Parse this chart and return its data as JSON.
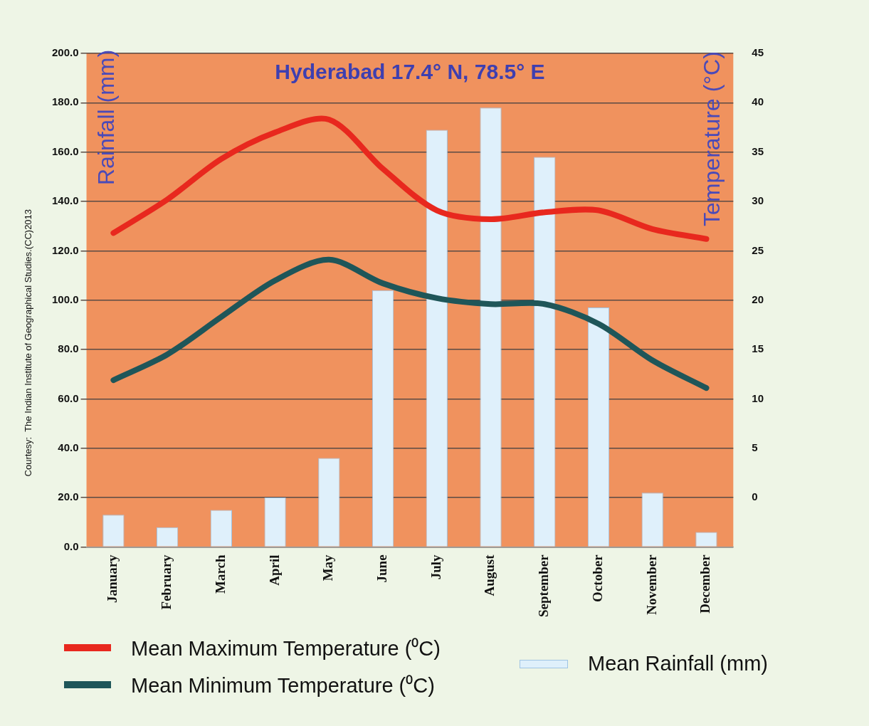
{
  "chart_data": {
    "type": "bar",
    "title": "Hyderabad 17.4° N, 78.5° E",
    "ylabel": "Rainfall (mm)",
    "y2label": "Temperature (°C)",
    "annotations": [
      "Courtesy:  The Indian Institute of Geographical Studies.(CC)2013"
    ],
    "categories": [
      "January",
      "February",
      "March",
      "April",
      "May",
      "June",
      "July",
      "August",
      "September",
      "October",
      "November",
      "December"
    ],
    "series": [
      {
        "name": "Mean Maximum Temperature (⁰C)",
        "type": "line",
        "axis": "y2",
        "color": "#e8281e",
        "values": [
          26.8,
          30.2,
          34.3,
          37,
          38.3,
          33.3,
          29.1,
          28.2,
          28.9,
          29.1,
          27.2,
          26.2
        ]
      },
      {
        "name": "Mean Minimum Temperature  (⁰C)",
        "type": "line",
        "axis": "y2",
        "color": "#1f5659",
        "values": [
          11.9,
          14.5,
          18.3,
          22,
          24.1,
          21.7,
          20.2,
          19.6,
          19.6,
          17.6,
          13.9,
          11.1
        ]
      },
      {
        "name": "Mean Rainfall (mm)",
        "color": "#dff0fb",
        "values": [
          13,
          8,
          15,
          20,
          36,
          104,
          169,
          178,
          158,
          97,
          22,
          6
        ]
      }
    ],
    "ylim": [
      0,
      200
    ],
    "yticks": [
      {
        "value": 0,
        "label": "0.0"
      },
      {
        "value": 20,
        "label": "20.0"
      },
      {
        "value": 40,
        "label": "40.0"
      },
      {
        "value": 60,
        "label": "60.0"
      },
      {
        "value": 80,
        "label": "80.0"
      },
      {
        "value": 100,
        "label": "100.0"
      },
      {
        "value": 120,
        "label": "120.0"
      },
      {
        "value": 140,
        "label": "140.0"
      },
      {
        "value": 160,
        "label": "160.0"
      },
      {
        "value": 180,
        "label": "180.0"
      },
      {
        "value": 200,
        "label": "200.0"
      }
    ],
    "y2lim": [
      -5,
      45
    ],
    "y2ticks": [
      0,
      5,
      10,
      15,
      20,
      25,
      30,
      35,
      40,
      45
    ],
    "grid": "y",
    "legend": "bottom"
  }
}
